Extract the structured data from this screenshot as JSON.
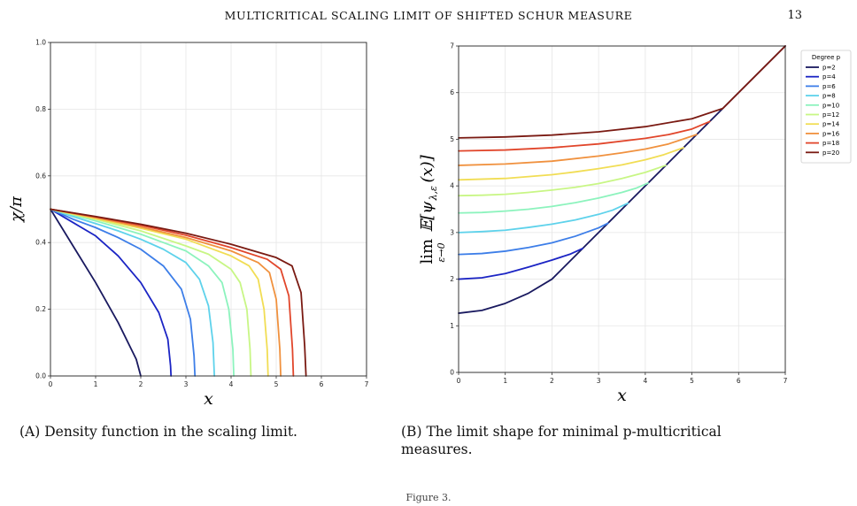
{
  "header": {
    "title": "MULTICRITICAL SCALING LIMIT OF SHIFTED SCHUR MEASURE",
    "page_number": "13"
  },
  "captions": {
    "a_label": "(A)",
    "a_text": "Density function in the scaling limit.",
    "b_label": "(B)",
    "b_text": "The limit shape for minimal p-multicritical measures."
  },
  "footer_text": "Figure 3.",
  "chart_data": [
    {
      "type": "line",
      "xlabel": "x",
      "ylabel": "χ/π",
      "xlim": [
        0,
        7
      ],
      "ylim": [
        0,
        1.0
      ],
      "xticks": [
        "0",
        "1",
        "2",
        "3",
        "4",
        "5",
        "6",
        "7"
      ],
      "yticks": [
        "0.0",
        "0.2",
        "0.4",
        "0.6",
        "0.8",
        "1.0"
      ],
      "grid": true,
      "series": [
        {
          "p": 2,
          "color": "#19195f",
          "x": [
            0,
            0.5,
            1,
            1.5,
            1.9,
            2.0
          ],
          "values": [
            0.5,
            0.39,
            0.28,
            0.16,
            0.05,
            0
          ]
        },
        {
          "p": 4,
          "color": "#1b24c4",
          "x": [
            0,
            0.5,
            1,
            1.5,
            2,
            2.4,
            2.6,
            2.66,
            2.67
          ],
          "values": [
            0.5,
            0.46,
            0.42,
            0.36,
            0.28,
            0.19,
            0.11,
            0.03,
            0
          ]
        },
        {
          "p": 6,
          "color": "#3d7ee8",
          "x": [
            0,
            0.5,
            1,
            1.5,
            2,
            2.5,
            2.9,
            3.1,
            3.18,
            3.2
          ],
          "values": [
            0.5,
            0.47,
            0.445,
            0.415,
            0.38,
            0.33,
            0.26,
            0.17,
            0.06,
            0
          ]
        },
        {
          "p": 8,
          "color": "#5ed2eb",
          "x": [
            0,
            0.5,
            1,
            1.5,
            2,
            2.5,
            3,
            3.3,
            3.5,
            3.6,
            3.63
          ],
          "values": [
            0.5,
            0.478,
            0.457,
            0.435,
            0.41,
            0.38,
            0.34,
            0.29,
            0.21,
            0.1,
            0
          ]
        },
        {
          "p": 10,
          "color": "#8cf3bd",
          "x": [
            0,
            1,
            2,
            2.5,
            3,
            3.5,
            3.8,
            3.95,
            4.04,
            4.06
          ],
          "values": [
            0.5,
            0.465,
            0.425,
            0.4,
            0.375,
            0.33,
            0.28,
            0.2,
            0.08,
            0
          ]
        },
        {
          "p": 12,
          "color": "#c8f685",
          "x": [
            0,
            1,
            2,
            3,
            3.5,
            4,
            4.2,
            4.35,
            4.42,
            4.44
          ],
          "values": [
            0.5,
            0.47,
            0.435,
            0.39,
            0.365,
            0.32,
            0.28,
            0.2,
            0.08,
            0
          ]
        },
        {
          "p": 14,
          "color": "#f1dd54",
          "x": [
            0,
            1,
            2,
            3,
            4,
            4.4,
            4.6,
            4.73,
            4.8,
            4.82
          ],
          "values": [
            0.5,
            0.472,
            0.443,
            0.41,
            0.36,
            0.33,
            0.29,
            0.2,
            0.08,
            0
          ]
        },
        {
          "p": 16,
          "color": "#f0913e",
          "x": [
            0,
            1,
            2,
            3,
            4,
            4.6,
            4.85,
            5.0,
            5.08,
            5.1
          ],
          "values": [
            0.5,
            0.475,
            0.447,
            0.415,
            0.375,
            0.34,
            0.31,
            0.23,
            0.08,
            0
          ]
        },
        {
          "p": 18,
          "color": "#e1462b",
          "x": [
            0,
            1,
            2,
            3,
            4,
            4.8,
            5.1,
            5.28,
            5.36,
            5.38
          ],
          "values": [
            0.5,
            0.477,
            0.452,
            0.422,
            0.385,
            0.35,
            0.32,
            0.24,
            0.08,
            0
          ]
        },
        {
          "p": 20,
          "color": "#7a1a12",
          "x": [
            0,
            1,
            2,
            3,
            4,
            5,
            5.35,
            5.55,
            5.63,
            5.66
          ],
          "values": [
            0.5,
            0.478,
            0.455,
            0.428,
            0.395,
            0.355,
            0.33,
            0.25,
            0.09,
            0
          ]
        }
      ]
    },
    {
      "type": "line",
      "xlabel": "x",
      "ylabel": "lim_{ε→0} E[ψ_{λ,ε}(x)]",
      "xlim": [
        0,
        7
      ],
      "ylim": [
        0,
        7
      ],
      "xticks": [
        "0",
        "1",
        "2",
        "3",
        "4",
        "5",
        "6",
        "7"
      ],
      "yticks": [
        "0",
        "1",
        "2",
        "3",
        "4",
        "5",
        "6",
        "7"
      ],
      "grid": true,
      "legend_title": "Degree p",
      "legend_position": "outside-right",
      "series": [
        {
          "name": "p=2",
          "color": "#19195f",
          "x": [
            0,
            0.5,
            1,
            1.5,
            2,
            2.66,
            3.2,
            3.63,
            4.06,
            4.44,
            4.82,
            5.1,
            5.38,
            5.66,
            7
          ],
          "values": [
            1.27,
            1.33,
            1.48,
            1.7,
            2.0,
            2.66,
            3.2,
            3.63,
            4.06,
            4.44,
            4.82,
            5.1,
            5.38,
            5.66,
            7
          ]
        },
        {
          "name": "p=4",
          "color": "#1b24c4",
          "x": [
            0,
            0.5,
            1,
            1.5,
            2,
            2.4,
            2.66
          ],
          "values": [
            2.0,
            2.03,
            2.12,
            2.26,
            2.41,
            2.54,
            2.66
          ]
        },
        {
          "name": "p=6",
          "color": "#3d7ee8",
          "x": [
            0,
            0.5,
            1,
            1.5,
            2,
            2.5,
            3.0,
            3.2
          ],
          "values": [
            2.53,
            2.55,
            2.6,
            2.68,
            2.78,
            2.92,
            3.1,
            3.2
          ]
        },
        {
          "name": "p=8",
          "color": "#5ed2eb",
          "x": [
            0,
            0.5,
            1,
            1.5,
            2,
            2.5,
            3.0,
            3.3,
            3.63
          ],
          "values": [
            3.0,
            3.02,
            3.05,
            3.11,
            3.18,
            3.27,
            3.39,
            3.48,
            3.63
          ]
        },
        {
          "name": "p=10",
          "color": "#8cf3bd",
          "x": [
            0,
            0.5,
            1,
            1.5,
            2,
            2.5,
            3.0,
            3.5,
            3.8,
            4.06
          ],
          "values": [
            3.42,
            3.43,
            3.46,
            3.5,
            3.56,
            3.64,
            3.74,
            3.86,
            3.95,
            4.06
          ]
        },
        {
          "name": "p=12",
          "color": "#c8f685",
          "x": [
            0,
            0.5,
            1,
            1.5,
            2,
            2.5,
            3.0,
            3.5,
            4.0,
            4.44
          ],
          "values": [
            3.79,
            3.8,
            3.82,
            3.86,
            3.91,
            3.97,
            4.05,
            4.16,
            4.29,
            4.44
          ]
        },
        {
          "name": "p=14",
          "color": "#f1dd54",
          "x": [
            0,
            1,
            2,
            2.5,
            3.0,
            3.5,
            4.0,
            4.4,
            4.82
          ],
          "values": [
            4.13,
            4.16,
            4.24,
            4.3,
            4.37,
            4.45,
            4.56,
            4.67,
            4.82
          ]
        },
        {
          "name": "p=16",
          "color": "#f0913e",
          "x": [
            0,
            1,
            2,
            3.0,
            3.5,
            4.0,
            4.5,
            5.1
          ],
          "values": [
            4.44,
            4.47,
            4.53,
            4.64,
            4.71,
            4.79,
            4.9,
            5.1
          ]
        },
        {
          "name": "p=18",
          "color": "#e1462b",
          "x": [
            0,
            1,
            2,
            3.0,
            4.0,
            4.5,
            5.0,
            5.38
          ],
          "values": [
            4.75,
            4.77,
            4.82,
            4.9,
            5.02,
            5.1,
            5.22,
            5.38
          ]
        },
        {
          "name": "p=20",
          "color": "#7a1a12",
          "x": [
            0,
            1,
            2,
            3.0,
            4.0,
            5.0,
            5.66,
            7
          ],
          "values": [
            5.03,
            5.05,
            5.09,
            5.16,
            5.27,
            5.44,
            5.66,
            7
          ]
        }
      ]
    }
  ]
}
